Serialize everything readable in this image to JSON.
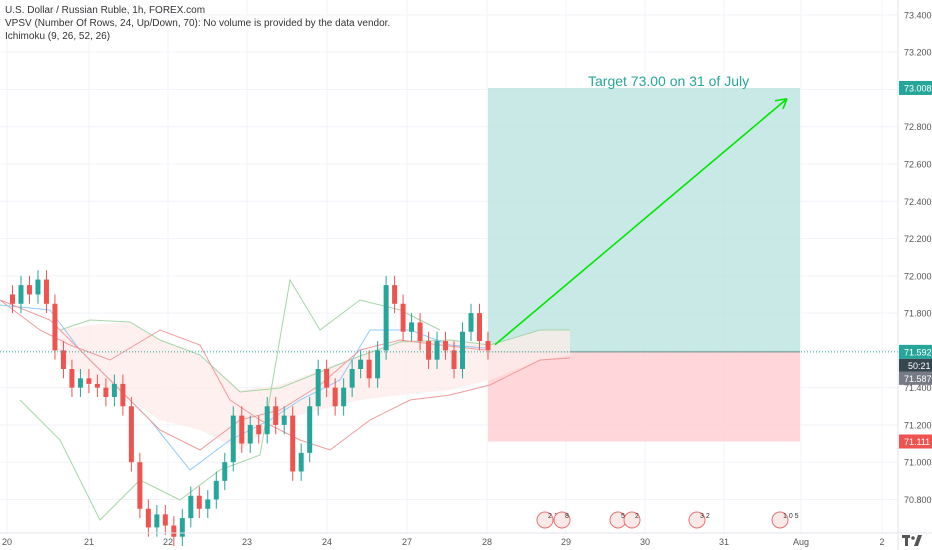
{
  "legend": {
    "symbol": "U.S. Dollar / Russian Ruble, 1h, FOREX.com",
    "vpsv": "VPSV (Number Of Rows, 24, Up/Down, 70): No volume is provided by the data vendor.",
    "ichimoku": "Ichimoku (9, 26, 52, 26)"
  },
  "annotation": {
    "target_text": "Target 73.00 on 31 of July"
  },
  "axis_tags": {
    "target": "73.008",
    "current": "71.592",
    "countdown": "50:21",
    "second": "71.587",
    "stop": "71.111"
  },
  "event_labels": [
    "2 1",
    "8",
    "5 1 1",
    "2",
    "3 2",
    "1 0 5"
  ],
  "colors": {
    "bull": "#26a69a",
    "bear": "#ef5350",
    "profit_zone": "#b2dfdb",
    "loss_zone": "#ffcdd2",
    "arrow": "#00e600",
    "cloud_green": "#e8f5e9",
    "cloud_red": "#fdecea"
  },
  "chart_data": {
    "type": "candlestick",
    "title": "U.S. Dollar / Russian Ruble, 1h, FOREX.com",
    "y_ticks": [
      70.8,
      71.0,
      71.2,
      71.4,
      71.6,
      71.8,
      72.0,
      72.2,
      72.4,
      72.6,
      72.8,
      73.0,
      73.2,
      73.4
    ],
    "y_tick_labels": [
      "70.800",
      "71.000",
      "71.200",
      "71.400",
      "71.600",
      "71.800",
      "72.000",
      "72.200",
      "72.400",
      "72.600",
      "72.800",
      "73.000",
      "73.200",
      "73.400"
    ],
    "ylim": [
      70.62,
      73.48
    ],
    "x_labels": [
      "20",
      "21",
      "22",
      "23",
      "24",
      "27",
      "28",
      "29",
      "30",
      "31",
      "Aug",
      "2"
    ],
    "grid": true,
    "series": [
      {
        "name": "USD/RUB",
        "close_path": [
          71.9,
          71.85,
          71.95,
          71.9,
          71.98,
          71.85,
          71.6,
          71.5,
          71.4,
          71.45,
          71.42,
          71.4,
          71.35,
          71.42,
          71.3,
          71.0,
          70.75,
          70.65,
          70.72,
          70.66,
          70.6,
          70.7,
          70.82,
          70.75,
          70.8,
          70.9,
          71.0,
          71.25,
          71.1,
          71.2,
          71.15,
          71.3,
          71.2,
          71.25,
          70.95,
          71.05,
          71.3,
          71.5,
          71.4,
          71.3,
          71.4,
          71.5,
          71.55,
          71.45,
          71.6,
          71.95,
          71.85,
          71.7,
          71.75,
          71.65,
          71.55,
          71.65,
          71.6,
          71.5,
          71.7,
          71.8,
          71.65,
          71.6
        ]
      }
    ],
    "annotations": [
      {
        "text": "Target 73.00 on 31 of July"
      }
    ],
    "position": {
      "entry": 71.592,
      "target": 73.008,
      "stop": 71.111
    }
  }
}
